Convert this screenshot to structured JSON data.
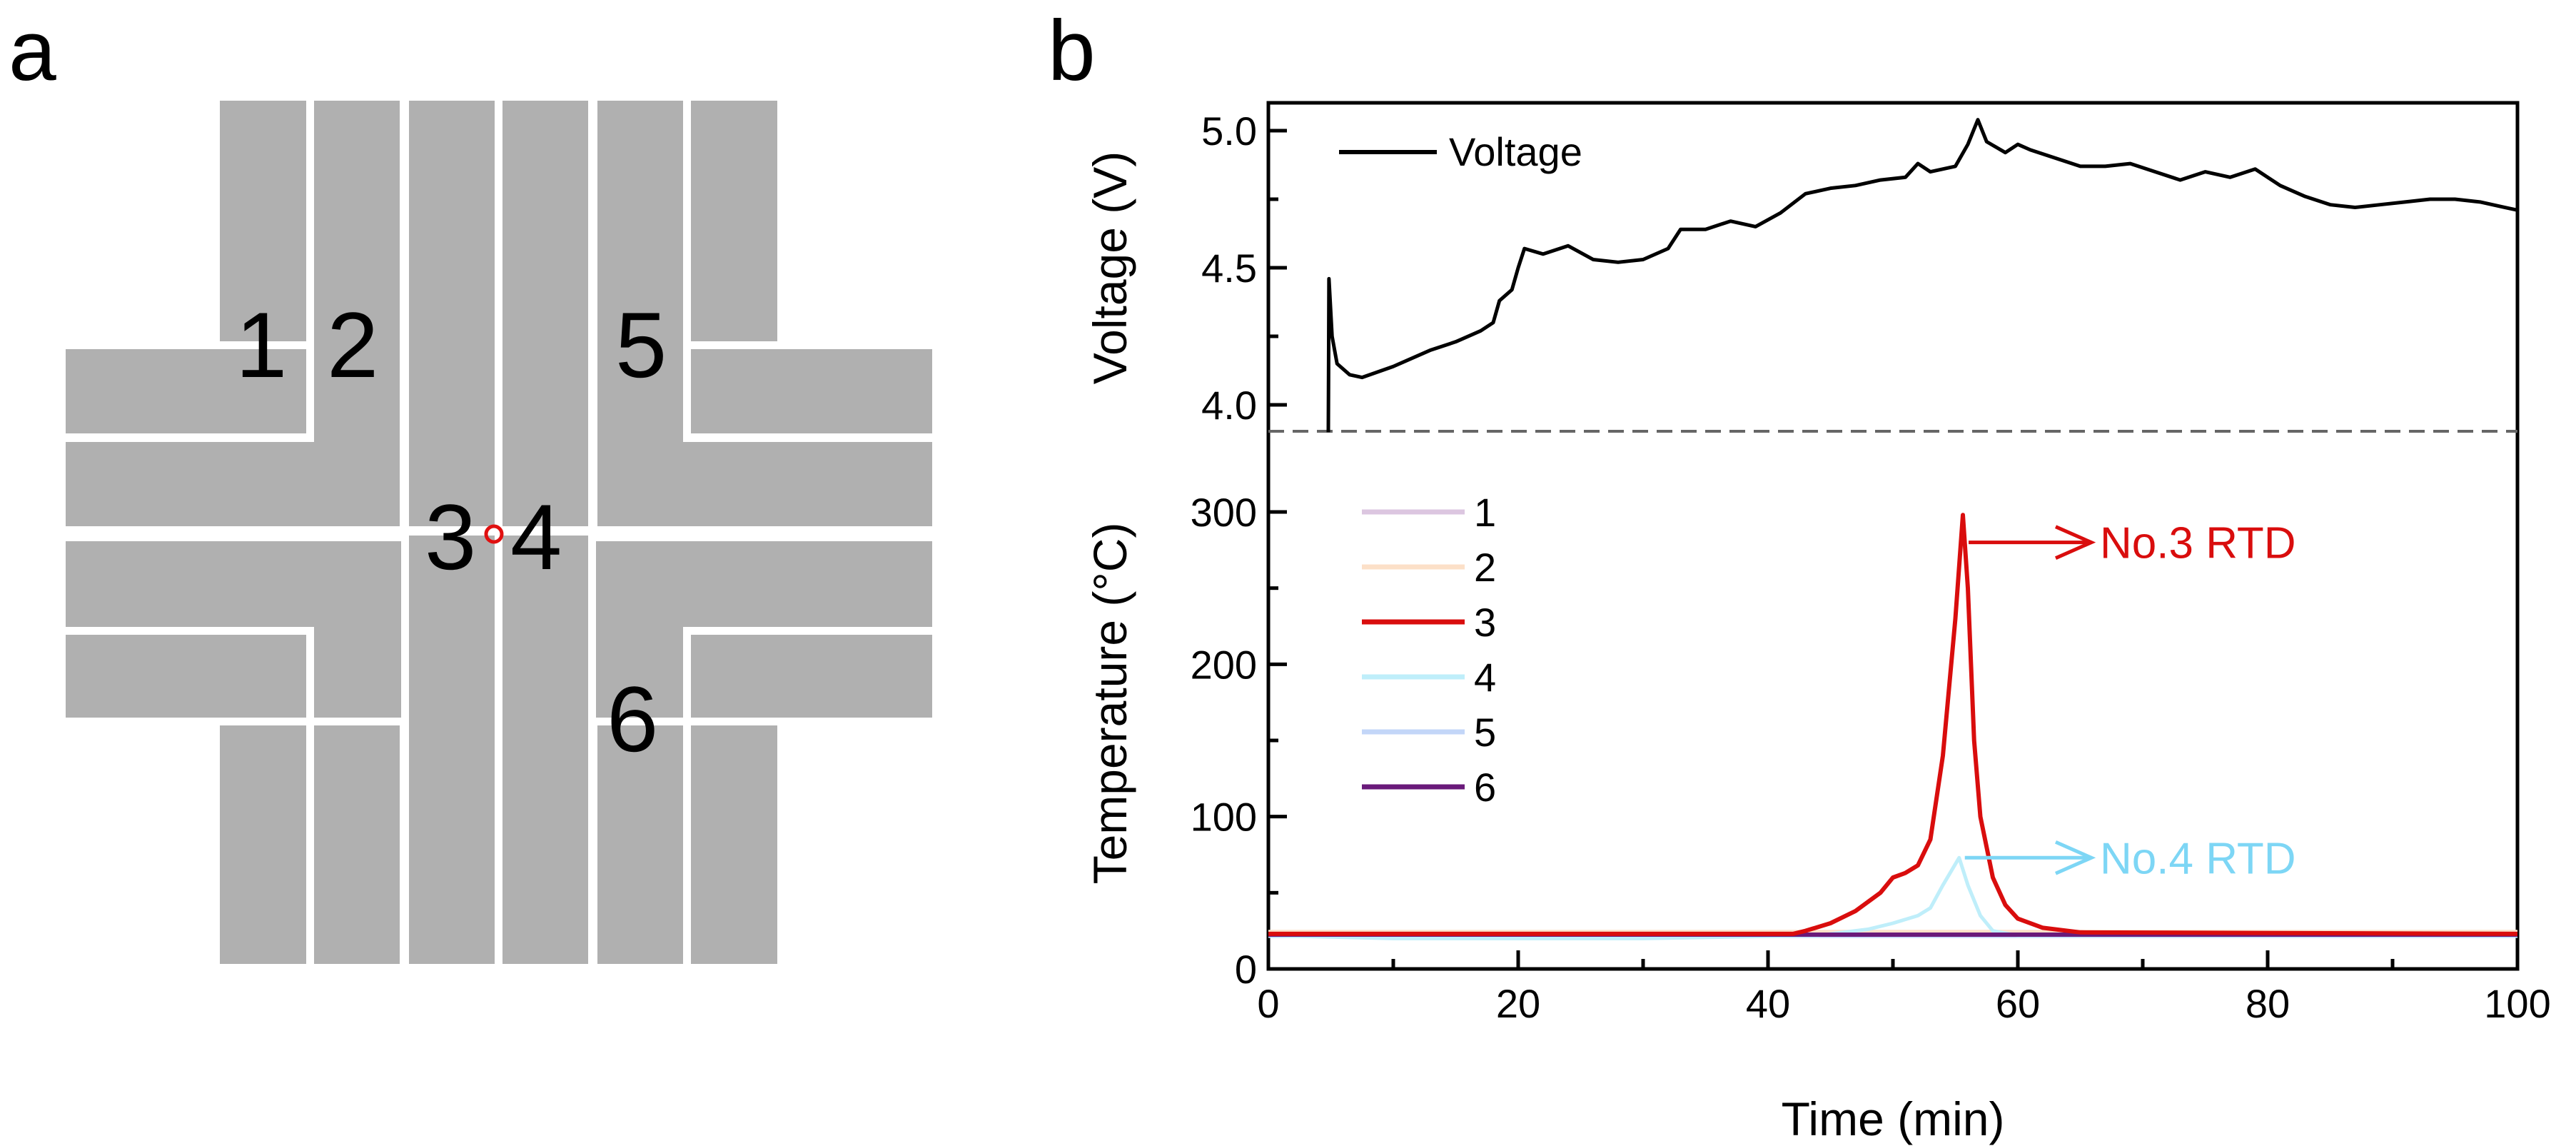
{
  "panel_a": {
    "letter": "a",
    "sensor_labels": [
      "1",
      "2",
      "3",
      "4",
      "5",
      "6"
    ],
    "electrode_color": "#b0b0b0",
    "marker_color": "#e01010"
  },
  "panel_b": {
    "letter": "b"
  },
  "chart_data": [
    {
      "type": "line",
      "title": "",
      "xlabel": "Time (min)",
      "ylabel": "Voltage (V)",
      "xlim": [
        0,
        100
      ],
      "ylim": [
        3.9,
        5.08
      ],
      "yticks": [
        "4.0",
        "4.5",
        "5.0"
      ],
      "ytick_values": [
        4.0,
        4.5,
        5.0
      ],
      "legend_placement": "top-left",
      "baseline_dashed": 3.9,
      "series": [
        {
          "name": "Voltage",
          "color": "#000000",
          "x": [
            4.8,
            4.85,
            5.1,
            5.5,
            6.5,
            7.5,
            10,
            13,
            15,
            17,
            18,
            18.5,
            19.5,
            20,
            20.5,
            22,
            24,
            26,
            28,
            30,
            32,
            33,
            35,
            37,
            39,
            41,
            43,
            45,
            47,
            49,
            51,
            52,
            53,
            55,
            56,
            56.8,
            57.5,
            59,
            60,
            61,
            63,
            65,
            67,
            69,
            71,
            73,
            75,
            77,
            79,
            81,
            83,
            85,
            87,
            89,
            91,
            93,
            95,
            97,
            99,
            100
          ],
          "y": [
            3.9,
            4.46,
            4.25,
            4.15,
            4.11,
            4.1,
            4.14,
            4.2,
            4.23,
            4.27,
            4.3,
            4.38,
            4.42,
            4.5,
            4.57,
            4.55,
            4.58,
            4.53,
            4.52,
            4.53,
            4.57,
            4.64,
            4.64,
            4.67,
            4.65,
            4.7,
            4.77,
            4.79,
            4.8,
            4.82,
            4.83,
            4.88,
            4.85,
            4.87,
            4.95,
            5.04,
            4.96,
            4.92,
            4.95,
            4.93,
            4.9,
            4.87,
            4.87,
            4.88,
            4.85,
            4.82,
            4.85,
            4.83,
            4.86,
            4.8,
            4.76,
            4.73,
            4.72,
            4.73,
            4.74,
            4.75,
            4.75,
            4.74,
            4.72,
            4.71
          ]
        }
      ]
    },
    {
      "type": "line",
      "title": "",
      "xlabel": "Time (min)",
      "ylabel": "Temperature (°C)",
      "xlim": [
        0,
        100
      ],
      "ylim": [
        0,
        353
      ],
      "xticks": [
        "0",
        "20",
        "40",
        "60",
        "80",
        "100"
      ],
      "xtick_values": [
        0,
        20,
        40,
        60,
        80,
        100
      ],
      "yticks": [
        "0",
        "100",
        "200",
        "300"
      ],
      "ytick_values": [
        0,
        100,
        200,
        300
      ],
      "legend_placement": "top-left",
      "series": [
        {
          "name": "1",
          "color": "#dcc6e0",
          "x": [
            0,
            100
          ],
          "y": [
            24,
            24
          ]
        },
        {
          "name": "2",
          "color": "#fce0c8",
          "x": [
            0,
            100
          ],
          "y": [
            24.5,
            24.5
          ]
        },
        {
          "name": "3",
          "color": "#d90d0d",
          "x": [
            0,
            42,
            43,
            45,
            47,
            49,
            50,
            51,
            52,
            53,
            54,
            55,
            55.6,
            56,
            56.5,
            57,
            58,
            59,
            60,
            62,
            65,
            100
          ],
          "y": [
            23,
            23,
            25,
            30,
            38,
            50,
            60,
            63,
            68,
            85,
            140,
            230,
            298,
            250,
            150,
            100,
            60,
            42,
            33,
            27,
            24,
            23
          ]
        },
        {
          "name": "4",
          "color": "#bfeefa",
          "x": [
            0,
            10,
            30,
            44,
            48,
            50,
            52,
            53,
            54,
            55.3,
            56,
            57,
            58,
            60,
            100
          ],
          "y": [
            22,
            20,
            20,
            22,
            26,
            30,
            35,
            40,
            55,
            73,
            55,
            35,
            25,
            22,
            22
          ]
        },
        {
          "name": "5",
          "color": "#c3d6f8",
          "x": [
            0,
            100
          ],
          "y": [
            21.5,
            21.5
          ]
        },
        {
          "name": "6",
          "color": "#6a1a7a",
          "x": [
            0,
            100
          ],
          "y": [
            22.5,
            22.5
          ]
        }
      ],
      "annotations": [
        {
          "text": "No.3 RTD",
          "color": "#d90d0d",
          "x": 55.6,
          "y": 280
        },
        {
          "text": "No.4 RTD",
          "color": "#7dd6f5",
          "x": 55.3,
          "y": 73
        }
      ]
    }
  ]
}
